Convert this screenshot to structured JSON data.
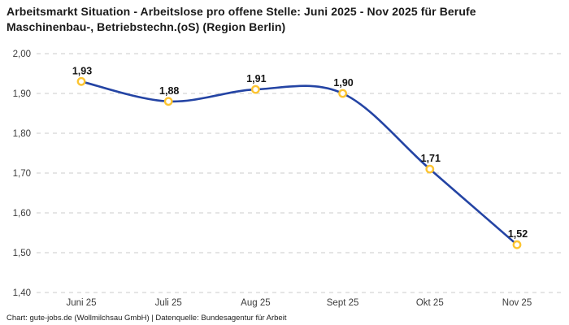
{
  "title": "Arbeitsmarkt Situation - Arbeitslose pro offene Stelle: Juni 2025 - Nov 2025 für Berufe Maschinenbau-, Betriebstechn.(oS) (Region Berlin)",
  "footer": "Chart: gute-jobs.de (Wollmilchsau GmbH) | Datenquelle: Bundesagentur für Arbeit",
  "chart_data": {
    "type": "line",
    "title": "Arbeitsmarkt Situation - Arbeitslose pro offene Stelle: Juni 2025 - Nov 2025 für Berufe Maschinenbau-, Betriebstechn.(oS) (Region Berlin)",
    "categories": [
      "Juni 25",
      "Juli 25",
      "Aug 25",
      "Sept 25",
      "Okt 25",
      "Nov 25"
    ],
    "values": [
      1.93,
      1.88,
      1.91,
      1.9,
      1.71,
      1.52
    ],
    "value_labels": [
      "1,93",
      "1,88",
      "1,91",
      "1,90",
      "1,71",
      "1,52"
    ],
    "xlabel": "",
    "ylabel": "",
    "ylim": [
      1.4,
      2.0
    ],
    "y_ticks": [
      2.0,
      1.9,
      1.8,
      1.7,
      1.6,
      1.5,
      1.4
    ],
    "y_tick_labels": [
      "2,00",
      "1,90",
      "1,80",
      "1,70",
      "1,60",
      "1,50",
      "1,40"
    ],
    "grid": "horizontal-dashed",
    "legend": "none",
    "colors": {
      "line": "#2444a4",
      "marker_ring": "#fcc431",
      "marker_fill": "#ffffff",
      "gridline": "#cbcbcb",
      "title_text": "#1a1a1a",
      "tick_text": "#3c3c3c",
      "data_label_text": "#141414",
      "background": "#ffffff"
    }
  }
}
